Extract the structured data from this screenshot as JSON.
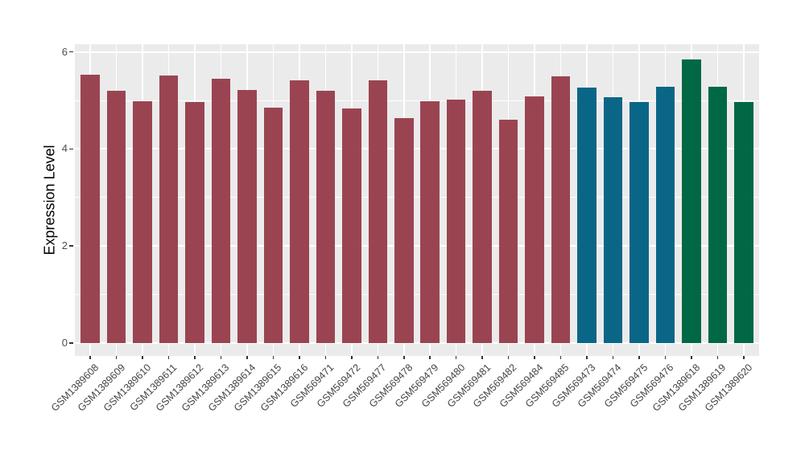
{
  "figure": {
    "background": "#ffffff",
    "panel_background": "#ebebeb",
    "gridline_color": "#ffffff",
    "tick_mark_color": "#333333",
    "tick_label_color": "#4d4d4d",
    "axis_title_color": "#000000"
  },
  "chart_data": {
    "type": "bar",
    "title": "",
    "xlabel": "",
    "ylabel": "Expression Level",
    "grid": true,
    "legend_position": "none",
    "y_axis": {
      "ticks": [
        0,
        2,
        4,
        6
      ],
      "minor_ticks": [
        1,
        3,
        5
      ],
      "range": [
        -0.26,
        6.16
      ]
    },
    "x_tick_angle": 45,
    "categories": [
      "GSM1389608",
      "GSM1389609",
      "GSM1389610",
      "GSM1389611",
      "GSM1389612",
      "GSM1389613",
      "GSM1389614",
      "GSM1389615",
      "GSM1389616",
      "GSM569471",
      "GSM569472",
      "GSM569477",
      "GSM569478",
      "GSM569479",
      "GSM569480",
      "GSM569481",
      "GSM569482",
      "GSM569484",
      "GSM569485",
      "GSM569473",
      "GSM569474",
      "GSM569475",
      "GSM569476",
      "GSM1389618",
      "GSM1389619",
      "GSM1389620"
    ],
    "values": [
      5.53,
      5.2,
      4.99,
      5.51,
      4.97,
      5.44,
      5.21,
      4.85,
      5.42,
      5.2,
      4.83,
      5.42,
      4.64,
      4.98,
      5.01,
      5.2,
      4.61,
      5.09,
      5.5,
      5.27,
      5.06,
      4.96,
      5.28,
      5.84,
      5.28,
      4.96
    ],
    "bar_colors": [
      "#9a4452",
      "#9a4452",
      "#9a4452",
      "#9a4452",
      "#9a4452",
      "#9a4452",
      "#9a4452",
      "#9a4452",
      "#9a4452",
      "#9a4452",
      "#9a4452",
      "#9a4452",
      "#9a4452",
      "#9a4452",
      "#9a4452",
      "#9a4452",
      "#9a4452",
      "#9a4452",
      "#9a4452",
      "#0a6687",
      "#0a6687",
      "#0a6687",
      "#0a6687",
      "#006845",
      "#006845",
      "#006845"
    ]
  }
}
